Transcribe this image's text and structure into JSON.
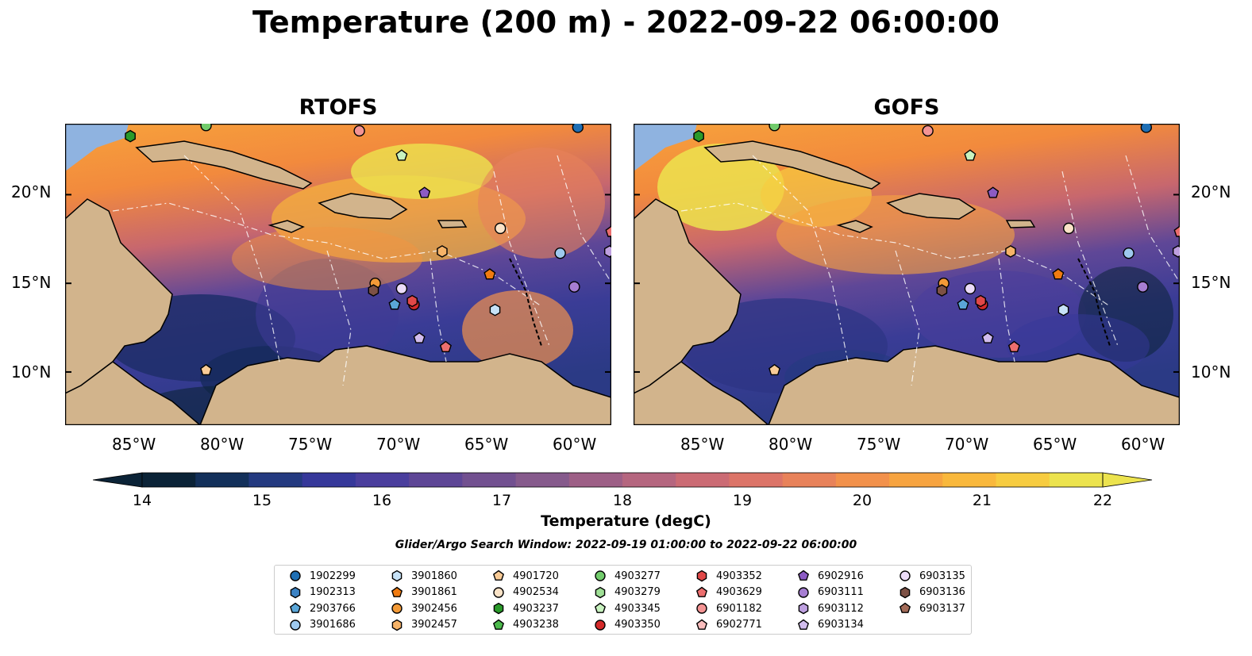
{
  "title": "Temperature (200 m) - 2022-09-22 06:00:00",
  "panels": {
    "left_title": "RTOFS",
    "right_title": "GOFS"
  },
  "axes": {
    "lat_labels": [
      "20°N",
      "15°N",
      "10°N"
    ],
    "lon_labels": [
      "85°W",
      "80°W",
      "75°W",
      "70°W",
      "65°W",
      "60°W"
    ]
  },
  "colorbar": {
    "label": "Temperature (degC)",
    "ticks": [
      "14",
      "15",
      "16",
      "17",
      "18",
      "19",
      "20",
      "21",
      "22"
    ],
    "range": [
      14,
      22
    ],
    "colors": [
      "#0b2337",
      "#13305a",
      "#243a80",
      "#36389a",
      "#4a3e9d",
      "#5e4696",
      "#725090",
      "#865a8c",
      "#9d5f86",
      "#b5667f",
      "#cb6b74",
      "#dc7468",
      "#e8825a",
      "#f2914b",
      "#f7a440",
      "#f9b83c",
      "#f7cc40",
      "#ece34e"
    ]
  },
  "search_window": "Glider/Argo Search Window: 2022-09-19 01:00:00 to 2022-09-22 06:00:00",
  "legend": [
    {
      "id": "1902299",
      "marker": "circle",
      "color": "#1f6fb4"
    },
    {
      "id": "1902313",
      "marker": "hexagon",
      "color": "#3b82c4"
    },
    {
      "id": "2903766",
      "marker": "pentagon",
      "color": "#5aa6d8"
    },
    {
      "id": "3901686",
      "marker": "circle",
      "color": "#9ec9ee"
    },
    {
      "id": "3901860",
      "marker": "hexagon",
      "color": "#c7e2f7"
    },
    {
      "id": "3901861",
      "marker": "pentagon",
      "color": "#f07b11"
    },
    {
      "id": "3902456",
      "marker": "circle",
      "color": "#f39a37"
    },
    {
      "id": "3902457",
      "marker": "hexagon",
      "color": "#f6b368"
    },
    {
      "id": "4901720",
      "marker": "pentagon",
      "color": "#f9cb96"
    },
    {
      "id": "4902534",
      "marker": "circle",
      "color": "#fbe3c7"
    },
    {
      "id": "4903237",
      "marker": "hexagon",
      "color": "#2a9a2a"
    },
    {
      "id": "4903238",
      "marker": "pentagon",
      "color": "#4cb94c"
    },
    {
      "id": "4903277",
      "marker": "circle",
      "color": "#72cc6c"
    },
    {
      "id": "4903279",
      "marker": "hexagon",
      "color": "#9fdf96"
    },
    {
      "id": "4903345",
      "marker": "pentagon",
      "color": "#c8f2bf"
    },
    {
      "id": "4903350",
      "marker": "circle",
      "color": "#d42a2a"
    },
    {
      "id": "4903352",
      "marker": "hexagon",
      "color": "#e04848"
    },
    {
      "id": "4903629",
      "marker": "pentagon",
      "color": "#ec6e6e"
    },
    {
      "id": "6901182",
      "marker": "circle",
      "color": "#f49494"
    },
    {
      "id": "6902771",
      "marker": "pentagon",
      "color": "#f9bdbd"
    },
    {
      "id": "6902916",
      "marker": "pentagon",
      "color": "#8c5bc4"
    },
    {
      "id": "6903111",
      "marker": "circle",
      "color": "#a67ed2"
    },
    {
      "id": "6903112",
      "marker": "hexagon",
      "color": "#bea0e0"
    },
    {
      "id": "6903134",
      "marker": "pentagon",
      "color": "#d2bdee"
    },
    {
      "id": "6903135",
      "marker": "circle",
      "color": "#ecdcf9"
    },
    {
      "id": "6903136",
      "marker": "hexagon",
      "color": "#7d5145"
    },
    {
      "id": "6903137",
      "marker": "pentagon",
      "color": "#a36b58"
    }
  ],
  "map_extent": {
    "lon": [
      -89,
      -58
    ],
    "lat": [
      7,
      24
    ]
  },
  "floats": [
    {
      "id": "4903237",
      "lon": -85.3,
      "lat": 23.3
    },
    {
      "id": "4903277",
      "lon": -81.0,
      "lat": 23.9
    },
    {
      "id": "6901182",
      "lon": -72.3,
      "lat": 23.6
    },
    {
      "id": "1902299",
      "lon": -59.9,
      "lat": 23.8
    },
    {
      "id": "4903345",
      "lon": -69.9,
      "lat": 22.2
    },
    {
      "id": "6902916",
      "lon": -68.6,
      "lat": 20.1
    },
    {
      "id": "4902534",
      "lon": -64.3,
      "lat": 18.1
    },
    {
      "id": "4903629",
      "lon": -58.0,
      "lat": 17.9
    },
    {
      "id": "3902457",
      "lon": -67.6,
      "lat": 16.8
    },
    {
      "id": "3901686",
      "lon": -60.9,
      "lat": 16.7
    },
    {
      "id": "6903112",
      "lon": -58.1,
      "lat": 16.8
    },
    {
      "id": "3901861",
      "lon": -64.9,
      "lat": 15.5
    },
    {
      "id": "3902456",
      "lon": -71.4,
      "lat": 15.0
    },
    {
      "id": "6903135",
      "lon": -69.9,
      "lat": 14.7
    },
    {
      "id": "6903136",
      "lon": -71.5,
      "lat": 14.6
    },
    {
      "id": "6903111",
      "lon": -60.1,
      "lat": 14.8
    },
    {
      "id": "2903766",
      "lon": -70.3,
      "lat": 13.8
    },
    {
      "id": "4903350",
      "lon": -69.2,
      "lat": 13.8
    },
    {
      "id": "4903352",
      "lon": -69.3,
      "lat": 14.0
    },
    {
      "id": "3901860",
      "lon": -64.6,
      "lat": 13.5
    },
    {
      "id": "6903134",
      "lon": -68.9,
      "lat": 11.9
    },
    {
      "id": "4903629",
      "lon": -67.4,
      "lat": 11.4
    },
    {
      "id": "4901720",
      "lon": -81.0,
      "lat": 10.1
    }
  ]
}
